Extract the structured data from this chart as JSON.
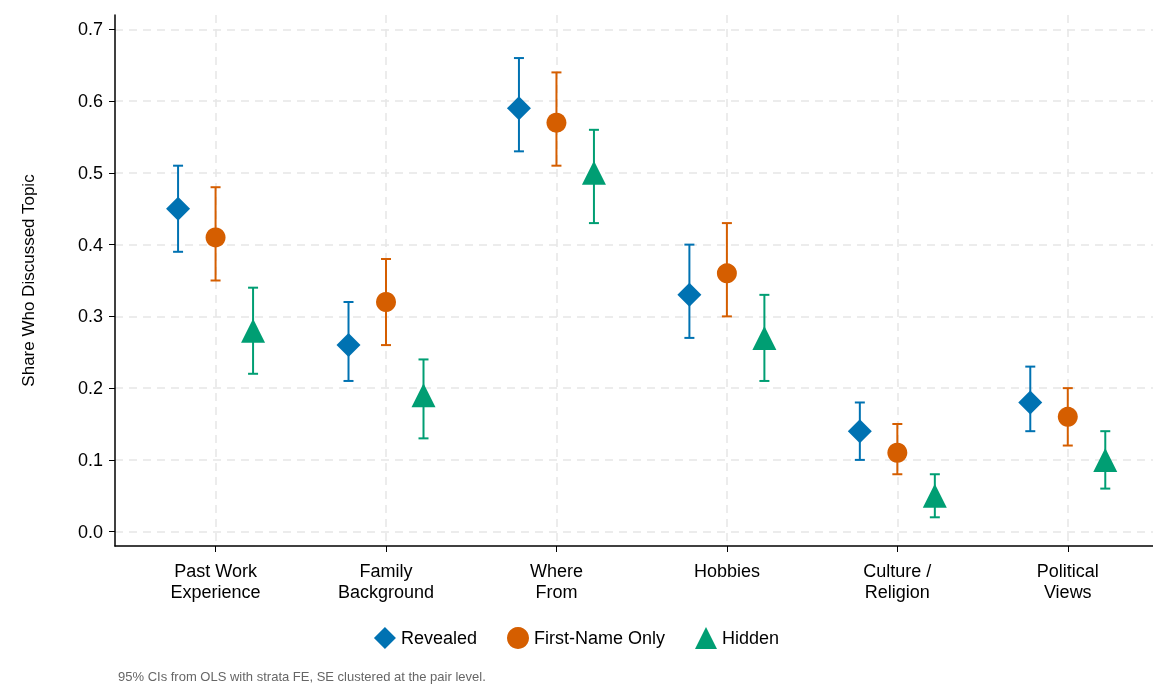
{
  "chart_data": {
    "type": "scatter",
    "ylabel": "Share Who Discussed Topic",
    "categories": [
      "Past Work\nExperience",
      "Family\nBackground",
      "Where\nFrom",
      "Hobbies",
      "Culture /\nReligion",
      "Political\nViews"
    ],
    "series": [
      {
        "name": "Revealed",
        "color": "#0072b2",
        "marker": "diamond",
        "values": [
          0.45,
          0.26,
          0.59,
          0.33,
          0.14,
          0.18
        ],
        "errors": [
          [
            0.39,
            0.51
          ],
          [
            0.21,
            0.32
          ],
          [
            0.53,
            0.66
          ],
          [
            0.27,
            0.4
          ],
          [
            0.1,
            0.18
          ],
          [
            0.14,
            0.23
          ]
        ]
      },
      {
        "name": "First-Name Only",
        "color": "#d55e00",
        "marker": "circle",
        "values": [
          0.41,
          0.32,
          0.57,
          0.36,
          0.11,
          0.16
        ],
        "errors": [
          [
            0.35,
            0.48
          ],
          [
            0.26,
            0.38
          ],
          [
            0.51,
            0.64
          ],
          [
            0.3,
            0.43
          ],
          [
            0.08,
            0.15
          ],
          [
            0.12,
            0.2
          ]
        ]
      },
      {
        "name": "Hidden",
        "color": "#009e73",
        "marker": "triangle",
        "values": [
          0.28,
          0.19,
          0.5,
          0.27,
          0.05,
          0.1
        ],
        "errors": [
          [
            0.22,
            0.34
          ],
          [
            0.13,
            0.24
          ],
          [
            0.43,
            0.56
          ],
          [
            0.21,
            0.33
          ],
          [
            0.02,
            0.08
          ],
          [
            0.06,
            0.14
          ]
        ]
      }
    ],
    "ylim": [
      -0.02,
      0.72
    ],
    "yticks": [
      {
        "value": 0,
        "label": "0.0"
      },
      0.1,
      0.2,
      0.3,
      0.4,
      0.5,
      0.6,
      0.7
    ],
    "grid": true,
    "legend": "bottom",
    "annotations": [
      "95% CIs from OLS with strata FE, SE clustered at the pair level."
    ]
  }
}
